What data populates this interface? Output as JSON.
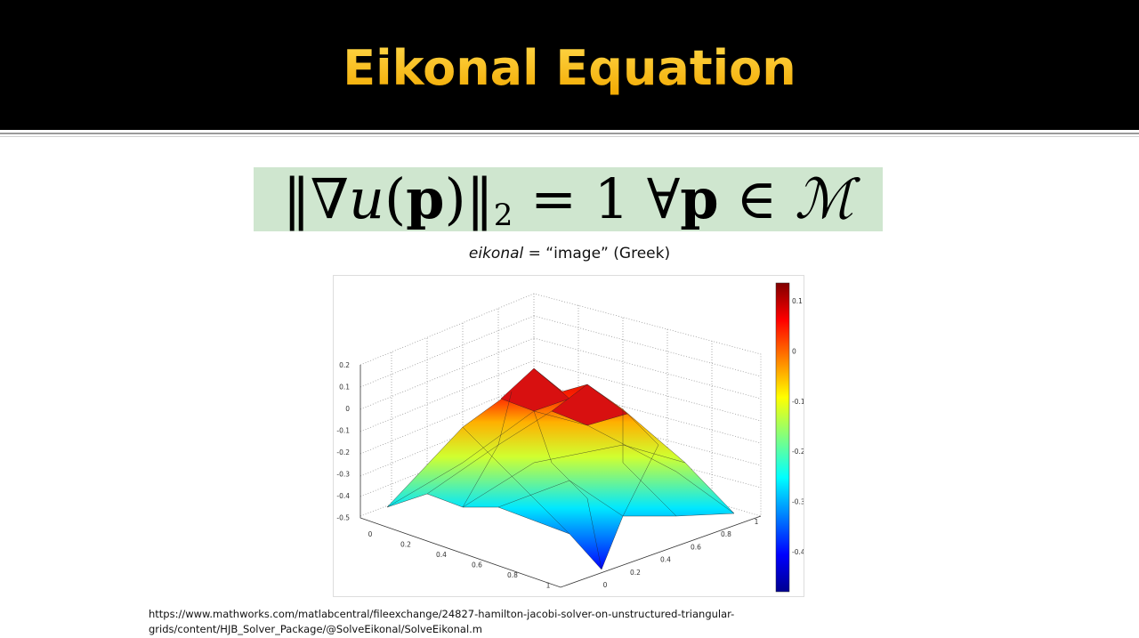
{
  "header": {
    "title": "Eikonal Equation"
  },
  "equation": {
    "parts": [
      "‖∇",
      "u",
      "(",
      "p",
      ")‖",
      "2",
      " = 1 ∀",
      "p",
      " ∈ ",
      "ℳ"
    ]
  },
  "caption": {
    "italic": "eikonal",
    "rest": " = “image” (Greek)"
  },
  "figure": {
    "z_ticks": [
      "0.2",
      "0.1",
      "0",
      "-0.1",
      "-0.2",
      "-0.3",
      "-0.4",
      "-0.5"
    ],
    "x_ticks": [
      "0",
      "0.2",
      "0.4",
      "0.6",
      "0.8",
      "1"
    ],
    "y_ticks": [
      "0",
      "0.2",
      "0.4",
      "0.6",
      "0.8",
      "1"
    ],
    "colorbar_ticks": [
      "0.1",
      "0",
      "-0.1",
      "-0.2",
      "-0.3",
      "-0.4"
    ]
  },
  "source": {
    "lines": [
      "https://www.mathworks.com/matlabcentral/fileexchange/24827-hamilton-jacobi-solver-on-unstructured-triangular-",
      "grids/content/HJB_Solver_Package/@SolveEikonal/SolveEikonal.m"
    ]
  }
}
